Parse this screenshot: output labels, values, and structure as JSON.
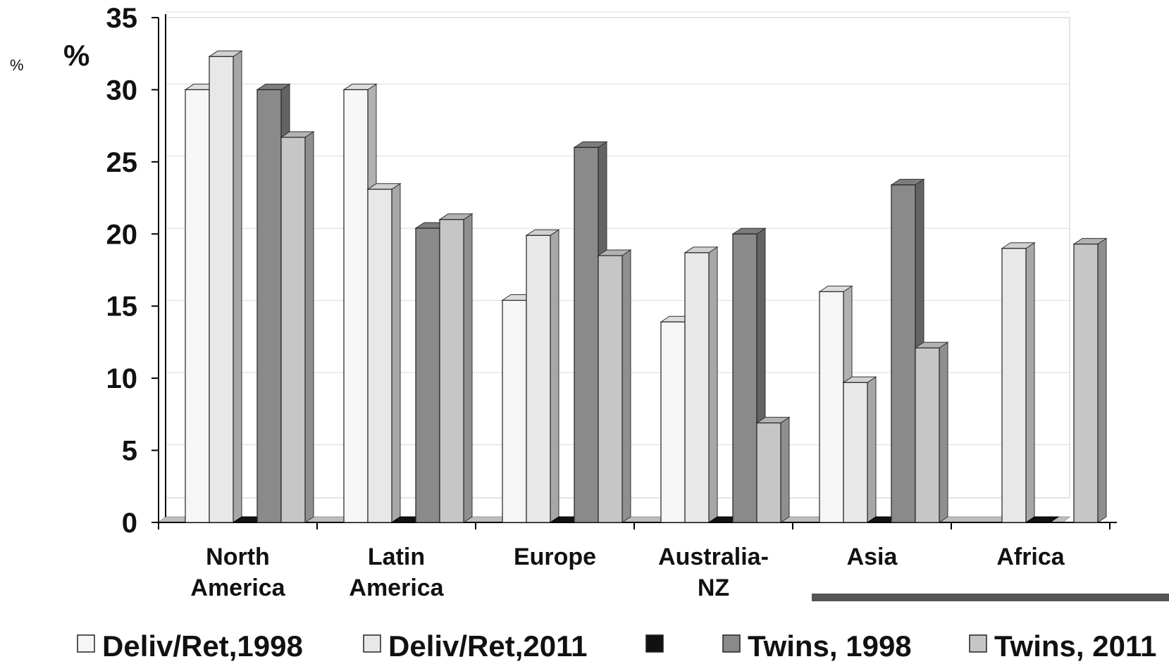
{
  "chart_data": {
    "type": "bar",
    "style": "3d-clustered",
    "categories": [
      [
        "North",
        "America"
      ],
      [
        "Latin",
        "America"
      ],
      [
        "Europe"
      ],
      [
        "Australia-",
        "NZ"
      ],
      [
        "Asia"
      ],
      [
        "Africa"
      ]
    ],
    "series": [
      {
        "name": "Deliv/Ret,1998",
        "color": "#f6f6f6",
        "values": [
          30,
          30,
          15.4,
          13.9,
          16,
          null
        ]
      },
      {
        "name": "Deliv/Ret,2011",
        "color": "#e8e8e8",
        "values": [
          32.3,
          23.1,
          19.9,
          18.7,
          9.7,
          19
        ]
      },
      {
        "name": "",
        "color": "#111111",
        "values": [
          0,
          0,
          0,
          0,
          0,
          0
        ]
      },
      {
        "name": "Twins, 1998",
        "color": "#8a8a8a",
        "values": [
          30,
          20.4,
          26,
          20,
          23.4,
          null
        ]
      },
      {
        "name": "Twins, 2011",
        "color": "#c6c6c6",
        "values": [
          26.7,
          21,
          18.5,
          6.9,
          12.1,
          19.3
        ]
      }
    ],
    "y_ticks": [
      "0",
      "5",
      "10",
      "15",
      "20",
      "25",
      "30",
      "35"
    ],
    "ylim": [
      0,
      35
    ],
    "unit_labels": {
      "large": "%",
      "small": "%"
    },
    "grid": true,
    "legend_position": "bottom"
  }
}
